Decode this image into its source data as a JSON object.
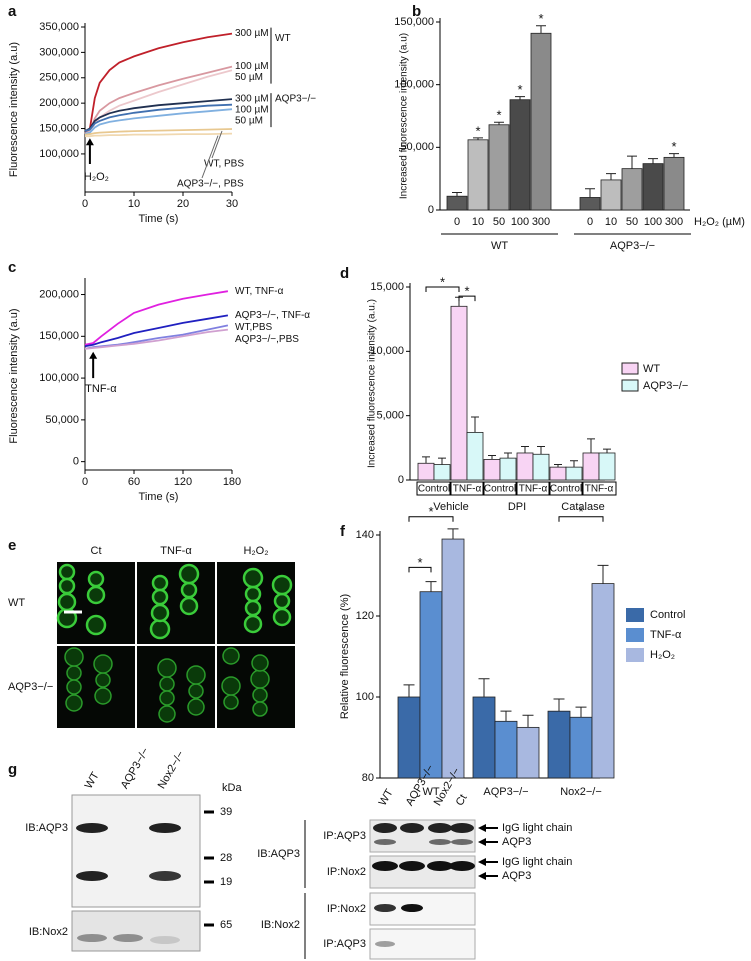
{
  "chart_data": [
    {
      "label": "a",
      "type": "line",
      "x_label": "Time (s)",
      "y_label": "Fluorescence intensity (a.u)",
      "xlim": [
        0,
        30
      ],
      "xticks": [
        0,
        10,
        20,
        30
      ],
      "ylim": [
        25000,
        350000
      ],
      "yticks": [
        {
          "value": 100000,
          "label": "100,000"
        },
        {
          "value": 150000,
          "label": "150,000"
        },
        {
          "value": 200000,
          "label": "200,000"
        },
        {
          "value": 250000,
          "label": "250,000"
        },
        {
          "value": 300000,
          "label": "300,000"
        },
        {
          "value": 350000,
          "label": "350,000"
        }
      ],
      "x": [
        0,
        1,
        2,
        3,
        5,
        7,
        10,
        15,
        20,
        25,
        30
      ],
      "series": [
        {
          "name": "300 µM",
          "color": "#c0202a",
          "values": [
            140000,
            150000,
            210000,
            240000,
            265000,
            280000,
            292000,
            308000,
            320000,
            330000,
            337000
          ]
        },
        {
          "name": "100 µM",
          "color": "#d898a0",
          "values": [
            140000,
            145000,
            170000,
            185000,
            200000,
            210000,
            220000,
            235000,
            248000,
            260000,
            272000
          ]
        },
        {
          "name": "50 µM",
          "color": "#ecc8cc",
          "values": [
            140000,
            143000,
            160000,
            172000,
            185000,
            195000,
            205000,
            222000,
            237000,
            252000,
            265000
          ]
        },
        {
          "name": "300 µM",
          "color": "#203050",
          "values": [
            145000,
            150000,
            165000,
            172000,
            180000,
            185000,
            190000,
            196000,
            200000,
            204000,
            208000
          ]
        },
        {
          "name": "100 µM",
          "color": "#4070b0",
          "values": [
            145000,
            148000,
            160000,
            165000,
            172000,
            176000,
            181000,
            187000,
            191000,
            195000,
            197000
          ]
        },
        {
          "name": "50 µM",
          "color": "#80b0e0",
          "values": [
            140000,
            142000,
            152000,
            158000,
            163000,
            166000,
            170000,
            175000,
            180000,
            184000,
            188000
          ]
        },
        {
          "name": "WT, PBS",
          "color": "#e8c890",
          "values": [
            138000,
            139000,
            141000,
            142000,
            143000,
            144000,
            145000,
            146000,
            147000,
            148000,
            149000
          ]
        },
        {
          "name": "AQP3−/−, PBS",
          "color": "#f0d8b0",
          "values": [
            135000,
            135000,
            136000,
            136000,
            137000,
            137000,
            138000,
            138000,
            139000,
            139000,
            140000
          ]
        }
      ],
      "groups": [
        "WT",
        "AQP3−/−"
      ],
      "stimulus": "H₂O₂"
    },
    {
      "label": "b",
      "type": "bar",
      "y_label": "Increased fluorescence intensity (a.u)",
      "x_label": "H₂O₂ (µM)",
      "ylim": [
        0,
        150000
      ],
      "yticks": [
        0,
        {
          "value": 50000,
          "label": "50,000"
        },
        {
          "value": 100000,
          "label": "100,000"
        },
        {
          "value": 150000,
          "label": "150,000"
        }
      ],
      "star": "*",
      "colors": [
        "#5a5a5a",
        "#bdbdbd",
        "#9e9e9e",
        "#4a4a4a",
        "#8a8a8a"
      ],
      "groups": [
        {
          "name": "WT",
          "categories": [
            "0",
            "10",
            "50",
            "100",
            "300"
          ],
          "values": [
            11000,
            56000,
            68000,
            88000,
            141000
          ],
          "errors": [
            3000,
            1500,
            2000,
            2500,
            6000
          ],
          "significant": [
            false,
            true,
            true,
            true,
            true
          ]
        },
        {
          "name": "AQP3−/−",
          "categories": [
            "0",
            "10",
            "50",
            "100",
            "300"
          ],
          "values": [
            10000,
            24000,
            33000,
            37000,
            42000
          ],
          "errors": [
            7000,
            5000,
            10000,
            4000,
            3000
          ],
          "significant": [
            false,
            false,
            false,
            false,
            true
          ]
        }
      ]
    },
    {
      "label": "c",
      "type": "line",
      "x_label": "Time (s)",
      "y_label": "Fluorescence intensity (a.u)",
      "xlim": [
        0,
        180
      ],
      "xticks": [
        0,
        60,
        120,
        180
      ],
      "ylim": [
        -10000,
        215000
      ],
      "yticks": [
        0,
        {
          "value": 50000,
          "label": "50,000"
        },
        {
          "value": 100000,
          "label": "100,000"
        },
        {
          "value": 150000,
          "label": "150,000"
        },
        {
          "value": 200000,
          "label": "200,000"
        }
      ],
      "x": [
        0,
        10,
        20,
        40,
        60,
        90,
        120,
        150,
        175
      ],
      "series": [
        {
          "name": "WT, TNF-α",
          "color": "#e020e0",
          "values": [
            140000,
            142000,
            150000,
            165000,
            178000,
            188000,
            195000,
            200000,
            204000
          ]
        },
        {
          "name": "AQP3−/−, TNF-α",
          "color": "#2020c0",
          "values": [
            138000,
            140000,
            143000,
            148000,
            154000,
            160000,
            166000,
            171000,
            175000
          ]
        },
        {
          "name": "WT,PBS",
          "color": "#8080e0",
          "values": [
            135000,
            137000,
            138000,
            140000,
            143000,
            148000,
            152000,
            158000,
            163000
          ]
        },
        {
          "name": "AQP3−/−,PBS",
          "color": "#d0a0d0",
          "values": [
            135000,
            136000,
            137000,
            139000,
            141000,
            145000,
            150000,
            155000,
            158000
          ]
        }
      ],
      "stimulus": "TNF-α"
    },
    {
      "label": "d",
      "type": "bar",
      "y_label": "Increased fluorescence intensity (a.u.)",
      "ylim": [
        0,
        15000
      ],
      "yticks": [
        0,
        {
          "value": 5000,
          "label": "5,000"
        },
        {
          "value": 10000,
          "label": "10,000"
        },
        {
          "value": 15000,
          "label": "15,000"
        }
      ],
      "star": "*",
      "groups": [
        "Vehicle",
        "DPI",
        "Catalase"
      ],
      "categories": [
        "Control",
        "TNF-α",
        "Control",
        "TNF-α",
        "Control",
        "TNF-α"
      ],
      "series": [
        {
          "name": "WT",
          "color": "#f8d4f4",
          "values": [
            1300,
            13500,
            1600,
            2100,
            1000,
            2100
          ],
          "errors": [
            500,
            700,
            300,
            500,
            200,
            1100
          ]
        },
        {
          "name": "AQP3−/−",
          "color": "#d8f8f8",
          "values": [
            1200,
            3700,
            1700,
            2000,
            1000,
            2100
          ],
          "errors": [
            500,
            1200,
            400,
            600,
            500,
            300
          ]
        }
      ]
    },
    {
      "label": "f",
      "type": "bar",
      "y_label": "Relative fluorescence (%)",
      "ylim": [
        80,
        140
      ],
      "yticks": [
        80,
        100,
        120,
        140
      ],
      "star": "*",
      "categories": [
        "WT",
        "AQP3−/−",
        "Nox2−/−"
      ],
      "series": [
        {
          "name": "Control",
          "color": "#3a6aa8",
          "values": [
            100,
            100,
            96.5
          ],
          "errors": [
            3,
            4.5,
            3
          ]
        },
        {
          "name": "TNF-α",
          "color": "#5a8ed0",
          "values": [
            126,
            94,
            95
          ],
          "errors": [
            2.5,
            2.5,
            2.5
          ]
        },
        {
          "name": "H₂O₂",
          "color": "#a8b8e0",
          "values": [
            139,
            92.5,
            128
          ],
          "errors": [
            2.5,
            3,
            4.5
          ]
        }
      ]
    }
  ],
  "panel_e": {
    "label": "e",
    "columns": [
      "Ct",
      "TNF-α",
      "H₂O₂"
    ],
    "rows": [
      "WT",
      "AQP3−/−"
    ]
  },
  "panel_g": {
    "label": "g",
    "left": {
      "lanes": [
        "WT",
        "AQP3−/−",
        "Nox2−/−"
      ],
      "unit": "kDa",
      "markers": [
        "39",
        "28",
        "19",
        "65"
      ],
      "rows": [
        "IB:AQP3",
        "IB:Nox2"
      ]
    },
    "right": {
      "lanes": [
        "WT",
        "AQP3−/−",
        "Nox2−/−",
        "Ct"
      ],
      "groups": [
        "IB:AQP3",
        "IB:Nox2"
      ],
      "rows": [
        "IP:AQP3",
        "IP:Nox2",
        "IP:Nox2",
        "IP:AQP3"
      ],
      "bands": [
        "IgG light chain",
        "AQP3",
        "IgG light chain",
        "AQP3"
      ]
    }
  }
}
